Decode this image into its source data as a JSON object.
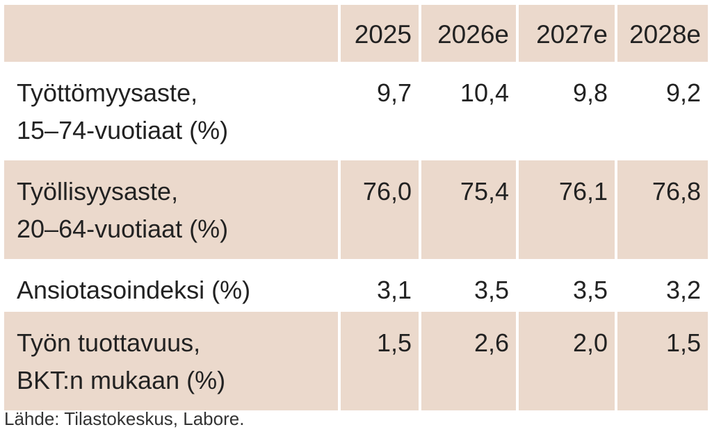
{
  "chart_data": {
    "type": "table",
    "columns": [
      "2025",
      "2026e",
      "2027e",
      "2028e"
    ],
    "rows": [
      {
        "label_lines": [
          "Työttömyysaste,",
          "15–74-vuotiaat (%)"
        ],
        "values": [
          "9,7",
          "10,4",
          "9,8",
          "9,2"
        ],
        "shaded": false
      },
      {
        "label_lines": [
          "Työllisyysaste,",
          "20–64-vuotiaat (%)"
        ],
        "values": [
          "76,0",
          "75,4",
          "76,1",
          "76,8"
        ],
        "shaded": true
      },
      {
        "label_lines": [
          "Ansiotasoindeksi (%)"
        ],
        "values": [
          "3,1",
          "3,5",
          "3,5",
          "3,2"
        ],
        "shaded": false
      },
      {
        "label_lines": [
          "Työn tuottavuus,",
          "BKT:n mukaan (%)"
        ],
        "values": [
          "1,5",
          "2,6",
          "2,0",
          "1,5"
        ],
        "shaded": true
      }
    ]
  },
  "source": "Lähde: Tilastokeskus, Labore.",
  "colors": {
    "shade": "#ebd9cc",
    "text": "#222222"
  }
}
